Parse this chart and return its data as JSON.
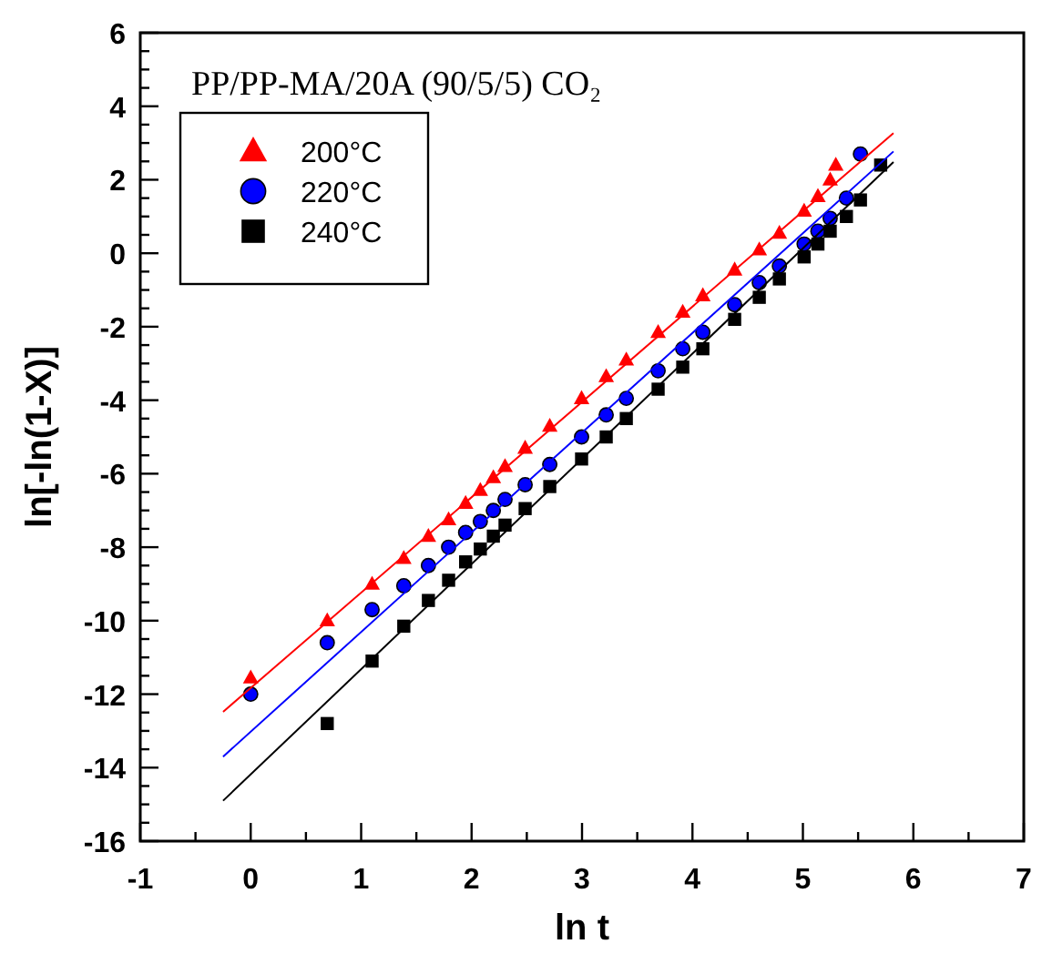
{
  "chart_data": {
    "type": "scatter",
    "title": "PP/PP-MA/20A (90/5/5) CO₂",
    "xlabel": "ln t",
    "ylabel": "ln[-ln(1-X)]",
    "xlim": [
      -1,
      7
    ],
    "ylim": [
      -16,
      6
    ],
    "xticks": [
      -1,
      {
        "value": -0.5,
        "label": null
      },
      0,
      {
        "value": 0.5,
        "label": null
      },
      1,
      {
        "value": 1.5,
        "label": null
      },
      2,
      {
        "value": 2.5,
        "label": null
      },
      3,
      {
        "value": 3.5,
        "label": null
      },
      4,
      {
        "value": 4.5,
        "label": null
      },
      5,
      {
        "value": 5.5,
        "label": null
      },
      6,
      {
        "value": 6.5,
        "label": null
      },
      7
    ],
    "yticks": [
      -16,
      {
        "value": -15.5,
        "label": null
      },
      {
        "value": -15,
        "label": null
      },
      {
        "value": -14.5,
        "label": null
      },
      -14,
      {
        "value": -13.5,
        "label": null
      },
      {
        "value": -13,
        "label": null
      },
      {
        "value": -12.5,
        "label": null
      },
      -12,
      {
        "value": -11.5,
        "label": null
      },
      {
        "value": -11,
        "label": null
      },
      {
        "value": -10.5,
        "label": null
      },
      -10,
      {
        "value": -9.5,
        "label": null
      },
      {
        "value": -9,
        "label": null
      },
      {
        "value": -8.5,
        "label": null
      },
      -8,
      {
        "value": -7.5,
        "label": null
      },
      {
        "value": -7,
        "label": null
      },
      {
        "value": -6.5,
        "label": null
      },
      -6,
      {
        "value": -5.5,
        "label": null
      },
      {
        "value": -5,
        "label": null
      },
      {
        "value": -4.5,
        "label": null
      },
      -4,
      {
        "value": -3.5,
        "label": null
      },
      {
        "value": -3,
        "label": null
      },
      {
        "value": -2.5,
        "label": null
      },
      -2,
      {
        "value": -1.5,
        "label": null
      },
      {
        "value": -1,
        "label": null
      },
      {
        "value": -0.5,
        "label": null
      },
      0,
      {
        "value": 0.5,
        "label": null
      },
      {
        "value": 1,
        "label": null
      },
      {
        "value": 1.5,
        "label": null
      },
      2,
      {
        "value": 2.5,
        "label": null
      },
      {
        "value": 3,
        "label": null
      },
      {
        "value": 3.5,
        "label": null
      },
      4,
      {
        "value": 4.5,
        "label": null
      },
      {
        "value": 5,
        "label": null
      },
      {
        "value": 5.5,
        "label": null
      },
      6
    ],
    "legend": "top left",
    "grid": false,
    "series": [
      {
        "name": "200°C",
        "marker": "triangle",
        "color": "#ff0000",
        "x": [
          0,
          0.693,
          1.099,
          1.386,
          1.609,
          1.792,
          1.946,
          2.079,
          2.197,
          2.303,
          2.485,
          2.708,
          2.996,
          3.219,
          3.401,
          3.689,
          3.912,
          4.094,
          4.382,
          4.605,
          4.787,
          5.011,
          5.136,
          5.247,
          5.298
        ],
        "values": [
          -11.55,
          -10.0,
          -9.0,
          -8.3,
          -7.7,
          -7.25,
          -6.8,
          -6.45,
          -6.1,
          -5.8,
          -5.3,
          -4.7,
          -3.95,
          -3.35,
          -2.9,
          -2.15,
          -1.6,
          -1.15,
          -0.45,
          0.1,
          0.55,
          1.15,
          1.55,
          2.0,
          2.4
        ]
      },
      {
        "name": "220°C",
        "marker": "circle",
        "color": "#0000ff",
        "x": [
          0,
          0.693,
          1.099,
          1.386,
          1.609,
          1.792,
          1.946,
          2.079,
          2.197,
          2.303,
          2.485,
          2.708,
          2.996,
          3.219,
          3.401,
          3.689,
          3.912,
          4.094,
          4.382,
          4.605,
          4.787,
          5.011,
          5.136,
          5.247,
          5.394,
          5.521
        ],
        "values": [
          -12.0,
          -10.6,
          -9.7,
          -9.05,
          -8.5,
          -8.0,
          -7.6,
          -7.3,
          -7.0,
          -6.7,
          -6.3,
          -5.75,
          -5.0,
          -4.4,
          -3.95,
          -3.2,
          -2.6,
          -2.15,
          -1.4,
          -0.8,
          -0.35,
          0.25,
          0.6,
          0.95,
          1.5,
          2.7
        ]
      },
      {
        "name": "240°C",
        "marker": "square",
        "color": "#000000",
        "x": [
          0.693,
          1.099,
          1.386,
          1.609,
          1.792,
          1.946,
          2.079,
          2.197,
          2.303,
          2.485,
          2.708,
          2.996,
          3.219,
          3.401,
          3.689,
          3.912,
          4.094,
          4.382,
          4.605,
          4.787,
          5.011,
          5.136,
          5.247,
          5.394,
          5.521,
          5.704
        ],
        "values": [
          -12.8,
          -11.1,
          -10.15,
          -9.45,
          -8.9,
          -8.4,
          -8.05,
          -7.7,
          -7.4,
          -6.95,
          -6.35,
          -5.6,
          -5.0,
          -4.5,
          -3.7,
          -3.1,
          -2.6,
          -1.8,
          -1.2,
          -0.7,
          -0.1,
          0.25,
          0.6,
          1.0,
          1.45,
          2.4
        ]
      },
      {
        "type": "line",
        "marker": "none",
        "color": "#ff0000",
        "x": [
          -0.25,
          5.82
        ],
        "values": [
          -12.48,
          3.27
        ]
      },
      {
        "type": "line",
        "marker": "none",
        "color": "#0000ff",
        "x": [
          -0.25,
          5.82
        ],
        "values": [
          -13.7,
          2.77
        ]
      },
      {
        "type": "line",
        "marker": "none",
        "color": "#000000",
        "x": [
          -0.25,
          5.82
        ],
        "values": [
          -14.9,
          2.48
        ]
      }
    ]
  }
}
